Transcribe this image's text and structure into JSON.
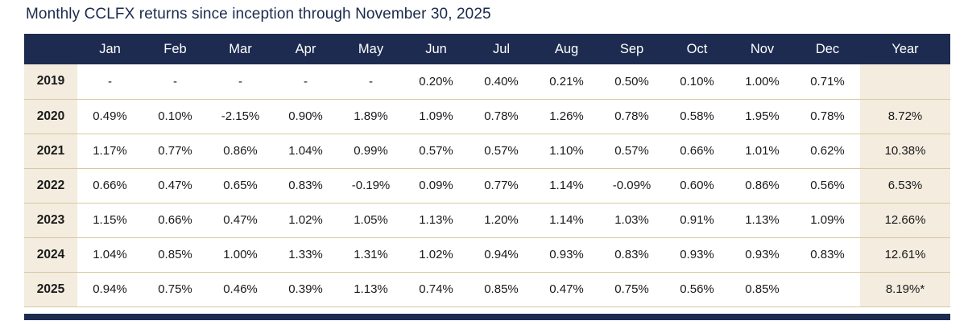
{
  "title": "Monthly CCLFX returns since inception through November 30, 2025",
  "colors": {
    "header_bg": "#1d2b50",
    "accent_beige": "#f3ecdf",
    "row_border": "#d9c8a2",
    "title_text": "#1a2b4c",
    "header_text": "#ffffff",
    "body_text": "#1a1a1a"
  },
  "chart_data": {
    "type": "table",
    "title": "Monthly CCLFX returns since inception through November 30, 2025",
    "columns": [
      "",
      "Jan",
      "Feb",
      "Mar",
      "Apr",
      "May",
      "Jun",
      "Jul",
      "Aug",
      "Sep",
      "Oct",
      "Nov",
      "Dec",
      "Year"
    ],
    "rows": [
      {
        "year": "2019",
        "monthly": [
          "-",
          "-",
          "-",
          "-",
          "-",
          "0.20%",
          "0.40%",
          "0.21%",
          "0.50%",
          "0.10%",
          "1.00%",
          "0.71%"
        ],
        "year_total": ""
      },
      {
        "year": "2020",
        "monthly": [
          "0.49%",
          "0.10%",
          "-2.15%",
          "0.90%",
          "1.89%",
          "1.09%",
          "0.78%",
          "1.26%",
          "0.78%",
          "0.58%",
          "1.95%",
          "0.78%"
        ],
        "year_total": "8.72%"
      },
      {
        "year": "2021",
        "monthly": [
          "1.17%",
          "0.77%",
          "0.86%",
          "1.04%",
          "0.99%",
          "0.57%",
          "0.57%",
          "1.10%",
          "0.57%",
          "0.66%",
          "1.01%",
          "0.62%"
        ],
        "year_total": "10.38%"
      },
      {
        "year": "2022",
        "monthly": [
          "0.66%",
          "0.47%",
          "0.65%",
          "0.83%",
          "-0.19%",
          "0.09%",
          "0.77%",
          "1.14%",
          "-0.09%",
          "0.60%",
          "0.86%",
          "0.56%"
        ],
        "year_total": "6.53%"
      },
      {
        "year": "2023",
        "monthly": [
          "1.15%",
          "0.66%",
          "0.47%",
          "1.02%",
          "1.05%",
          "1.13%",
          "1.20%",
          "1.14%",
          "1.03%",
          "0.91%",
          "1.13%",
          "1.09%"
        ],
        "year_total": "12.66%"
      },
      {
        "year": "2024",
        "monthly": [
          "1.04%",
          "0.85%",
          "1.00%",
          "1.33%",
          "1.31%",
          "1.02%",
          "0.94%",
          "0.93%",
          "0.83%",
          "0.93%",
          "0.93%",
          "0.83%"
        ],
        "year_total": "12.61%"
      },
      {
        "year": "2025",
        "monthly": [
          "0.94%",
          "0.75%",
          "0.46%",
          "0.39%",
          "1.13%",
          "0.74%",
          "0.85%",
          "0.47%",
          "0.75%",
          "0.56%",
          "0.85%",
          ""
        ],
        "year_total": "8.19%*"
      }
    ]
  }
}
